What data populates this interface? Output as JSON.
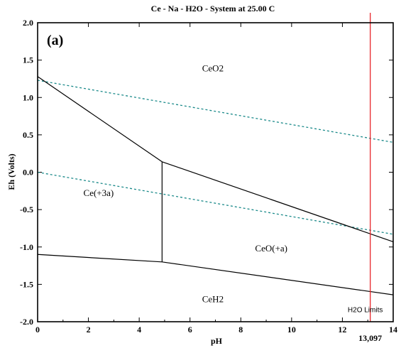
{
  "chart_data": {
    "type": "line",
    "title": "Ce - Na - H2O - System at 25.00 C",
    "panel_label": "(a)",
    "xlabel": "pH",
    "ylabel": "Eh (Volts)",
    "xlim": [
      0,
      14
    ],
    "ylim": [
      -2.0,
      2.0
    ],
    "x_ticks": [
      "0",
      "2",
      "4",
      "6",
      "8",
      "10",
      "12",
      "14"
    ],
    "y_ticks": [
      "2.0",
      "1.5",
      "1.0",
      "0.5",
      "0.0",
      "-0.5",
      "-1.0",
      "-1.5",
      "-2.0"
    ],
    "boundaries": [
      {
        "x": [
          0,
          4.9
        ],
        "y": [
          1.28,
          0.14
        ]
      },
      {
        "x": [
          4.9,
          14
        ],
        "y": [
          0.14,
          -0.93
        ]
      },
      {
        "x": [
          4.9,
          4.9
        ],
        "y": [
          0.14,
          -1.2
        ]
      },
      {
        "x": [
          0,
          4.9,
          14
        ],
        "y": [
          -1.1,
          -1.2,
          -1.64
        ]
      }
    ],
    "water_limits": [
      {
        "x": [
          0,
          14
        ],
        "y": [
          1.23,
          0.4
        ]
      },
      {
        "x": [
          0,
          14
        ],
        "y": [
          0.0,
          -0.83
        ]
      }
    ],
    "vertical_marker": {
      "x": 13.097,
      "label": "13,097",
      "color": "#e8262a"
    },
    "regions": [
      {
        "label": "CeO2",
        "x": 6.9,
        "y": 1.35
      },
      {
        "label": "Ce(+3a)",
        "x": 2.4,
        "y": -0.32
      },
      {
        "label": "CeO(+a)",
        "x": 9.2,
        "y": -1.06
      },
      {
        "label": "CeH2",
        "x": 6.9,
        "y": -1.74
      }
    ],
    "annotation": {
      "label": "H2O Limits",
      "x": 12.9,
      "y": -1.87
    },
    "colors": {
      "boundary": "#000000",
      "water": "#1b8a8a",
      "marker": "#e8262a"
    }
  }
}
